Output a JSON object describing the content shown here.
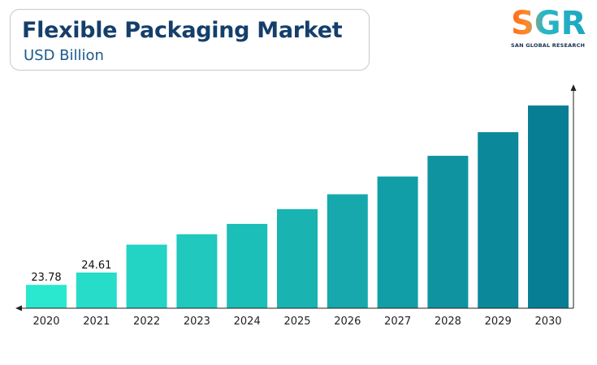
{
  "header": {
    "title": "Flexible Packaging Market",
    "subtitle": "USD Billion"
  },
  "logo": {
    "text": "SGR",
    "tagline": "SAN GLOBAL RESEARCH"
  },
  "colors": {
    "title": "#153f6b",
    "subtitle": "#1b5a8c",
    "bar_start": "#2ae8cf",
    "bar_end": "#087e95",
    "axis": "#222222"
  },
  "chart_data": {
    "type": "bar",
    "categories": [
      "2020",
      "2021",
      "2022",
      "2023",
      "2024",
      "2025",
      "2026",
      "2027",
      "2028",
      "2029",
      "2030"
    ],
    "values": [
      23.78,
      24.61,
      26.5,
      27.2,
      27.9,
      28.9,
      29.9,
      31.1,
      32.5,
      34.1,
      35.9
    ],
    "data_labels": [
      "23.78",
      "24.61",
      "",
      "",
      "",
      "",
      "",
      "",
      "",
      "",
      ""
    ],
    "ylim": [
      22.2,
      37.0
    ],
    "xlabel": "",
    "ylabel": "",
    "grid": false,
    "legend": "none"
  }
}
